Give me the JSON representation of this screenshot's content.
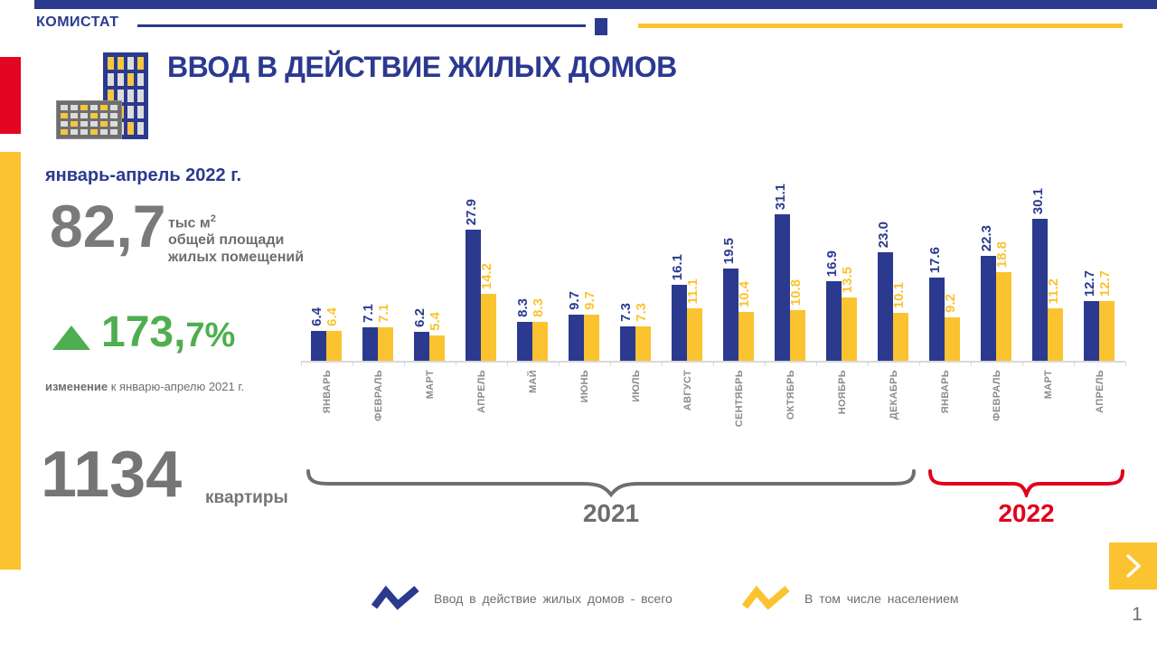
{
  "header": {
    "brand": "КОМИСТАТ"
  },
  "title": "ВВОД В ДЕЙСТВИЕ ЖИЛЫХ ДОМОВ",
  "panel": {
    "period": "январь-апрель 2022 г.",
    "area_value": "82,7",
    "area_unit_main": "тыс м",
    "area_unit_sup": "2",
    "area_unit_line2": "общей площади",
    "area_unit_line3": "жилых помещений",
    "change_value": "173,",
    "change_value_small": "7%",
    "change_note_bold": "изменение",
    "change_note_rest": " к январю-апрелю  2021 г.",
    "apartments_value": "1134",
    "apartments_label": "квартиры"
  },
  "chart_data": {
    "type": "bar",
    "categories": [
      "ЯНВАРЬ",
      "ФЕВРАЛЬ",
      "МАРТ",
      "АПРЕЛЬ",
      "МАЙ",
      "ИЮНЬ",
      "ИЮЛЬ",
      "АВГУСТ",
      "СЕНТЯБРЬ",
      "ОКТЯБРЬ",
      "НОЯБРЬ",
      "ДЕКАБРЬ",
      "ЯНВАРЬ",
      "ФЕВРАЛЬ",
      "МАРТ",
      "АПРЕЛЬ"
    ],
    "series": [
      {
        "name": "Ввод в действие жилых домов - всего",
        "color": "#2B3A8E",
        "values": [
          6.4,
          7.1,
          6.2,
          27.9,
          8.3,
          9.7,
          7.3,
          16.1,
          19.5,
          31.1,
          16.9,
          23.0,
          17.6,
          22.3,
          30.1,
          12.7
        ],
        "labels": [
          "6.4",
          "7.1",
          "6.2",
          "27.9",
          "8.3",
          "9.7",
          "7.3",
          "16.1",
          "19.5",
          "31.1",
          "16.9",
          "23.0",
          "17.6",
          "22.3",
          "30.1",
          "12.7"
        ]
      },
      {
        "name": "В том числе населением",
        "color": "#FBC32F",
        "values": [
          6.4,
          7.1,
          5.4,
          14.2,
          8.3,
          9.7,
          7.3,
          11.1,
          10.4,
          10.8,
          13.5,
          10.1,
          9.2,
          18.8,
          11.2,
          12.7
        ],
        "labels": [
          "6.4",
          "7.1",
          "5.4",
          "14.2",
          "8.3",
          "9.7",
          "7.3",
          "11.1",
          "10.4",
          "10.8",
          "13.5",
          "10.1",
          "9.2",
          "18.8",
          "11.2",
          "12.7"
        ]
      }
    ],
    "year_groups": [
      {
        "label": "2021",
        "from": 0,
        "to": 11
      },
      {
        "label": "2022",
        "from": 12,
        "to": 15
      }
    ],
    "year_labels": [
      "2021",
      "2022"
    ],
    "ylim": [
      0,
      32
    ],
    "units": "тыс м2",
    "legend_position": "bottom"
  },
  "building_icon": {
    "tall_windows": "YYWY WWYW YWWW WYWW WWYW",
    "low_windows": "WWYWYW YWWYWW WYWWYW YWWYWW"
  },
  "page": {
    "number": "1"
  }
}
